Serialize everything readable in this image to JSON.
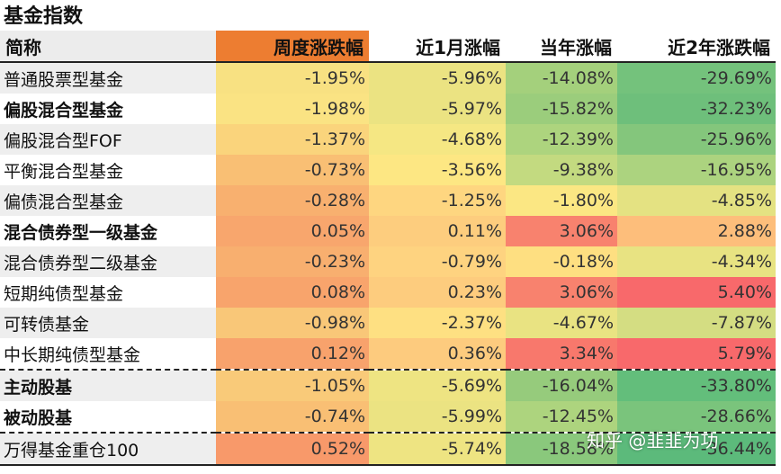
{
  "title": "基金指数",
  "headers": [
    "简称",
    "周度涨跌幅",
    "近1月涨幅",
    "当年涨幅",
    "近2年涨跌幅"
  ],
  "header_colors": [
    "#ececec",
    "#ed7d31",
    "#ffffff",
    "#ffffff",
    "#ffffff"
  ],
  "rows": [
    {
      "name": "普通股票型基金",
      "bold": false,
      "values": [
        "-1.95%",
        "-5.96%",
        "-14.08%",
        "-29.69%"
      ],
      "colors": [
        "#f8e182",
        "#ebe382",
        "#a4d07c",
        "#74c27c"
      ]
    },
    {
      "name": "偏股混合型基金",
      "bold": true,
      "values": [
        "-1.98%",
        "-5.97%",
        "-15.82%",
        "-32.23%"
      ],
      "colors": [
        "#fae383",
        "#ebe382",
        "#9bcd7c",
        "#6ebf7b"
      ]
    },
    {
      "name": "偏股混合型FOF",
      "bold": false,
      "values": [
        "-1.37%",
        "-4.68%",
        "-12.39%",
        "-25.96%"
      ],
      "colors": [
        "#fad47c",
        "#f5e783",
        "#add47e",
        "#84c67c"
      ]
    },
    {
      "name": "平衡混合型基金",
      "bold": false,
      "values": [
        "-0.73%",
        "-3.56%",
        "-9.38%",
        "-16.95%"
      ],
      "colors": [
        "#f9bf74",
        "#fde783",
        "#c3da80",
        "#acd37f"
      ]
    },
    {
      "name": "偏债混合型基金",
      "bold": false,
      "values": [
        "-0.28%",
        "-1.25%",
        "-1.80%",
        "-4.85%"
      ],
      "colors": [
        "#f8b06f",
        "#fed680",
        "#fbe783",
        "#e4e282"
      ]
    },
    {
      "name": "混合债券型一级基金",
      "bold": true,
      "values": [
        "0.05%",
        "0.11%",
        "3.06%",
        "2.88%"
      ],
      "colors": [
        "#f8a66d",
        "#fdcd7e",
        "#f8826e",
        "#fdbe7b"
      ]
    },
    {
      "name": "混合债券型二级基金",
      "bold": false,
      "values": [
        "-0.23%",
        "-0.79%",
        "-0.18%",
        "-4.34%"
      ],
      "colors": [
        "#f8af6f",
        "#fed380",
        "#fedf81",
        "#e8e382"
      ]
    },
    {
      "name": "短期纯债型基金",
      "bold": false,
      "values": [
        "0.08%",
        "0.23%",
        "3.06%",
        "5.40%"
      ],
      "colors": [
        "#f8a46c",
        "#fdcc7e",
        "#f8826e",
        "#f8696b"
      ]
    },
    {
      "name": "可转债基金",
      "bold": false,
      "values": [
        "-0.98%",
        "-2.37%",
        "-4.67%",
        "-7.87%"
      ],
      "colors": [
        "#f9c778",
        "#fee082",
        "#e9e382",
        "#d4dd82"
      ]
    },
    {
      "name": "中长期纯债型基金",
      "bold": false,
      "values": [
        "0.12%",
        "0.36%",
        "3.34%",
        "5.79%"
      ],
      "colors": [
        "#f8a26c",
        "#fdcb7e",
        "#f8786c",
        "#f8696b"
      ]
    },
    {
      "name": "主动股基",
      "bold": true,
      "values": [
        "-1.05%",
        "-5.69%",
        "-16.04%",
        "-33.80%"
      ],
      "colors": [
        "#f9ca79",
        "#eee482",
        "#96cb7c",
        "#63be7b"
      ]
    },
    {
      "name": "被动股基",
      "bold": true,
      "values": [
        "-0.74%",
        "-5.99%",
        "-12.45%",
        "-28.66%"
      ],
      "colors": [
        "#f9bf74",
        "#ebe382",
        "#add47e",
        "#7ac47c"
      ]
    },
    {
      "name": "万得基金重仓100",
      "bold": false,
      "values": [
        "0.52%",
        "-5.74%",
        "-18.58%",
        "-36.44%"
      ],
      "colors": [
        "#f8996a",
        "#eee482",
        "#8ac87c",
        "#5cba7b"
      ]
    }
  ],
  "watermark": "知乎 @韭韭为功"
}
